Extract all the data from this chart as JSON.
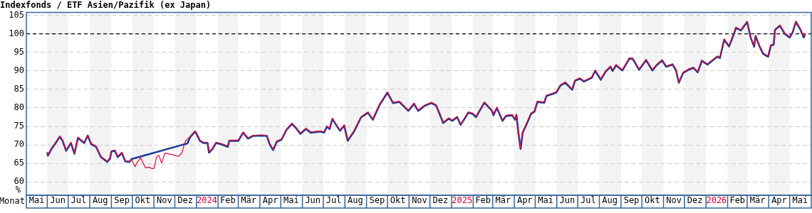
{
  "chart_data": {
    "type": "line",
    "title": "Indexfonds / ETF Asien/Pazifik (ex Japan)",
    "xlabel": "Monat",
    "ylabel": "%",
    "x": [
      "2023-06-01",
      "2023-06-02",
      "2023-06-07",
      "2023-06-13",
      "2023-06-19",
      "2023-06-23",
      "2023-06-28",
      "2023-07-05",
      "2023-07-10",
      "2023-07-15",
      "2023-07-24",
      "2023-07-29",
      "2023-08-03",
      "2023-08-10",
      "2023-08-17",
      "2023-08-26",
      "2023-08-30",
      "2023-09-01",
      "2023-09-06",
      "2023-09-10",
      "2023-09-16",
      "2023-09-21",
      "2023-09-27",
      "2023-09-30",
      "2023-10-05",
      "2023-10-08",
      "2023-10-13",
      "2023-10-16",
      "2023-10-20",
      "2023-10-25",
      "2023-10-29",
      "2023-11-01",
      "2023-11-05",
      "2023-11-08",
      "2023-11-12",
      "2023-11-17",
      "2023-11-24",
      "2023-12-01",
      "2023-12-06",
      "2023-12-11",
      "2023-12-16",
      "2023-12-23",
      "2023-12-30",
      "2024-01-01",
      "2024-01-06",
      "2024-01-11",
      "2024-01-17",
      "2024-01-19",
      "2024-01-24",
      "2024-01-29",
      "2024-02-05",
      "2024-02-15",
      "2024-02-17",
      "2024-03-01",
      "2024-03-08",
      "2024-03-15",
      "2024-03-22",
      "2024-04-03",
      "2024-04-11",
      "2024-04-15",
      "2024-04-20",
      "2024-04-25",
      "2024-05-02",
      "2024-05-09",
      "2024-05-17",
      "2024-05-24",
      "2024-05-29",
      "2024-06-06",
      "2024-06-13",
      "2024-06-27",
      "2024-07-02",
      "2024-07-06",
      "2024-07-10",
      "2024-07-14",
      "2024-07-19",
      "2024-07-25",
      "2024-07-31",
      "2024-08-05",
      "2024-08-14",
      "2024-08-24",
      "2024-09-03",
      "2024-09-10",
      "2024-09-20",
      "2024-10-01",
      "2024-10-09",
      "2024-10-18",
      "2024-10-31",
      "2024-11-08",
      "2024-11-14",
      "2024-11-24",
      "2024-12-03",
      "2024-12-10",
      "2024-12-20",
      "2024-12-28",
      "2025-01-02",
      "2025-01-09",
      "2025-01-14",
      "2025-01-25",
      "2025-01-31",
      "2025-02-05",
      "2025-02-17",
      "2025-02-28",
      "2025-03-02",
      "2025-03-07",
      "2025-03-15",
      "2025-03-20",
      "2025-03-29",
      "2025-04-02",
      "2025-04-04",
      "2025-04-07",
      "2025-04-10",
      "2025-04-13",
      "2025-04-20",
      "2025-04-25",
      "2025-04-30",
      "2025-05-04",
      "2025-05-14",
      "2025-05-17",
      "2025-05-31",
      "2025-06-06",
      "2025-06-13",
      "2025-06-23",
      "2025-06-27",
      "2025-07-04",
      "2025-07-10",
      "2025-07-21",
      "2025-07-26",
      "2025-08-03",
      "2025-08-10",
      "2025-08-17",
      "2025-08-20",
      "2025-08-25",
      "2025-09-03",
      "2025-09-08",
      "2025-09-13",
      "2025-09-18",
      "2025-09-27",
      "2025-10-07",
      "2025-10-16",
      "2025-10-23",
      "2025-10-30",
      "2025-11-05",
      "2025-11-14",
      "2025-11-19",
      "2025-11-23",
      "2025-11-29",
      "2025-12-08",
      "2025-12-14",
      "2025-12-20",
      "2025-12-26",
      "2026-01-03",
      "2026-01-17",
      "2026-01-21",
      "2026-01-27",
      "2026-02-03",
      "2026-02-07",
      "2026-02-13",
      "2026-02-20",
      "2026-03-01",
      "2026-03-06",
      "2026-03-11",
      "2026-03-13",
      "2026-03-19",
      "2026-03-24",
      "2026-03-31",
      "2026-04-04",
      "2026-04-08",
      "2026-04-10",
      "2026-04-17",
      "2026-04-24",
      "2026-05-01",
      "2026-05-05",
      "2026-05-10",
      "2026-05-17",
      "2026-05-21",
      "2026-05-23"
    ],
    "series": [
      {
        "color": "#1a3c96",
        "x": [
          "2023-06-01",
          "2023-06-02",
          "2023-06-07",
          "2023-06-13",
          "2023-06-19",
          "2023-06-23",
          "2023-06-28",
          "2023-07-05",
          "2023-07-10",
          "2023-07-15",
          "2023-07-24",
          "2023-07-29",
          "2023-08-03",
          "2023-08-10",
          "2023-08-17",
          "2023-08-26",
          "2023-08-30",
          "2023-09-01",
          "2023-09-06",
          "2023-09-10",
          "2023-09-16",
          "2023-09-21",
          "2023-09-27",
          "2023-09-30",
          "2023-12-19",
          "2023-12-23",
          "2023-12-30",
          "2024-01-01",
          "2024-01-06",
          "2024-01-11",
          "2024-01-17",
          "2024-01-19",
          "2024-01-24",
          "2024-01-29",
          "2024-02-05",
          "2024-02-15",
          "2024-02-17",
          "2024-03-01",
          "2024-03-08",
          "2024-03-15",
          "2024-03-22",
          "2024-04-03",
          "2024-04-11",
          "2024-04-15",
          "2024-04-20",
          "2024-04-25",
          "2024-05-02",
          "2024-05-09",
          "2024-05-17",
          "2024-05-24",
          "2024-05-29",
          "2024-06-06",
          "2024-06-13",
          "2024-06-27",
          "2024-07-02",
          "2024-07-06",
          "2024-07-10",
          "2024-07-14",
          "2024-07-19",
          "2024-07-25",
          "2024-07-31",
          "2024-08-05",
          "2024-08-14",
          "2024-08-24",
          "2024-09-03",
          "2024-09-10",
          "2024-09-20",
          "2024-10-01",
          "2024-10-09",
          "2024-10-18",
          "2024-10-31",
          "2024-11-08",
          "2024-11-14",
          "2024-11-24",
          "2024-12-03",
          "2024-12-10",
          "2024-12-20",
          "2024-12-28",
          "2025-01-02",
          "2025-01-09",
          "2025-01-14",
          "2025-01-25",
          "2025-01-31",
          "2025-02-05",
          "2025-02-17",
          "2025-02-28",
          "2025-03-02",
          "2025-03-07",
          "2025-03-15",
          "2025-03-20",
          "2025-03-29",
          "2025-04-02",
          "2025-04-04",
          "2025-04-07",
          "2025-04-10",
          "2025-04-13",
          "2025-04-20",
          "2025-04-25",
          "2025-04-30",
          "2025-05-04",
          "2025-05-14",
          "2025-05-17",
          "2025-05-31",
          "2025-06-06",
          "2025-06-13",
          "2025-06-23",
          "2025-06-27",
          "2025-07-04",
          "2025-07-10",
          "2025-07-21",
          "2025-07-26",
          "2025-08-03",
          "2025-08-10",
          "2025-08-17",
          "2025-08-20",
          "2025-08-25",
          "2025-09-03",
          "2025-09-08",
          "2025-09-13",
          "2025-09-18",
          "2025-09-27",
          "2025-10-07",
          "2025-10-16",
          "2025-10-23",
          "2025-10-30",
          "2025-11-05",
          "2025-11-14",
          "2025-11-19",
          "2025-11-23",
          "2025-11-29",
          "2025-12-08",
          "2025-12-14",
          "2025-12-20",
          "2025-12-26",
          "2026-01-03",
          "2026-01-17",
          "2026-01-21",
          "2026-01-27",
          "2026-02-03",
          "2026-02-07",
          "2026-02-13",
          "2026-02-20",
          "2026-03-01",
          "2026-03-06",
          "2026-03-11",
          "2026-03-13",
          "2026-03-19",
          "2026-03-24",
          "2026-03-31",
          "2026-04-04",
          "2026-04-08",
          "2026-04-10",
          "2026-04-17",
          "2026-04-24",
          "2026-05-01",
          "2026-05-05",
          "2026-05-10",
          "2026-05-17",
          "2026-05-21",
          "2026-05-23"
        ],
        "values": [
          67.9,
          67.1,
          68.9,
          70.5,
          72.2,
          71.1,
          68.4,
          70.5,
          67.6,
          71.9,
          70.5,
          72.5,
          70.2,
          69.5,
          66.7,
          65.4,
          66.3,
          68.2,
          68.4,
          66.7,
          67.8,
          65.5,
          65.4,
          66.2,
          70.4,
          72.1,
          73.6,
          73.0,
          71.1,
          70.5,
          70.5,
          67.9,
          68.9,
          70.5,
          70.2,
          69.5,
          71.1,
          71.1,
          73.3,
          71.7,
          72.4,
          72.5,
          72.4,
          70.2,
          68.6,
          70.8,
          71.4,
          74.0,
          75.7,
          74.3,
          73.0,
          74.3,
          73.3,
          73.6,
          73.3,
          74.9,
          74.3,
          77.0,
          75.5,
          73.8,
          75.2,
          71.1,
          73.6,
          77.4,
          78.7,
          76.8,
          80.9,
          84.1,
          81.3,
          81.6,
          79.2,
          81.1,
          79.2,
          80.6,
          81.3,
          80.6,
          75.9,
          77.1,
          76.5,
          77.5,
          75.4,
          78.7,
          78.4,
          77.5,
          81.4,
          79.2,
          78.0,
          80.0,
          76.5,
          77.8,
          78.0,
          76.8,
          78.1,
          73.0,
          68.9,
          73.3,
          76.2,
          78.4,
          79.0,
          81.6,
          81.4,
          83.2,
          84.1,
          86.0,
          86.8,
          84.9,
          87.3,
          87.9,
          87.1,
          88.1,
          90.0,
          87.6,
          89.8,
          91.1,
          90.0,
          91.5,
          90.1,
          91.7,
          93.3,
          93.2,
          90.3,
          92.9,
          90.1,
          91.7,
          92.8,
          91.1,
          91.7,
          90.1,
          86.8,
          89.4,
          90.4,
          90.8,
          89.6,
          92.7,
          91.7,
          93.8,
          93.5,
          98.4,
          96.6,
          98.5,
          101.6,
          100.9,
          103.2,
          99.0,
          96.5,
          99.4,
          96.5,
          94.6,
          93.8,
          96.8,
          97.1,
          101.1,
          102.2,
          100.0,
          99.0,
          100.3,
          103.2,
          100.9,
          99.0,
          99.8
        ]
      },
      {
        "color": "#dc0a3c",
        "values": [
          68.1,
          67.3,
          69.1,
          70.7,
          72.4,
          71.3,
          68.6,
          70.7,
          67.8,
          72.1,
          70.7,
          72.7,
          70.4,
          69.7,
          66.9,
          65.6,
          66.5,
          68.4,
          68.6,
          66.9,
          68.0,
          65.7,
          65.6,
          66.0,
          64.1,
          65.3,
          66.5,
          65.3,
          63.8,
          64.0,
          63.6,
          63.6,
          66.9,
          67.2,
          65.1,
          67.8,
          67.5,
          67.2,
          66.9,
          67.8,
          71.0,
          72.3,
          73.8,
          73.2,
          71.3,
          70.7,
          70.7,
          68.1,
          69.1,
          70.7,
          70.4,
          69.7,
          71.3,
          71.3,
          73.5,
          71.9,
          72.6,
          72.7,
          72.6,
          70.4,
          68.8,
          71.0,
          71.6,
          74.2,
          75.9,
          74.5,
          73.2,
          74.5,
          73.5,
          73.8,
          73.5,
          75.1,
          74.5,
          77.2,
          75.7,
          74.0,
          75.4,
          71.3,
          73.8,
          77.6,
          78.9,
          77.0,
          81.1,
          84.3,
          81.5,
          81.8,
          79.4,
          81.3,
          79.4,
          80.8,
          81.5,
          80.8,
          76.1,
          77.3,
          76.7,
          77.7,
          75.6,
          78.9,
          78.6,
          77.7,
          81.6,
          79.4,
          78.2,
          80.2,
          76.7,
          78.0,
          78.2,
          77.0,
          78.3,
          73.2,
          69.1,
          73.5,
          76.4,
          78.6,
          79.2,
          81.8,
          81.6,
          83.4,
          84.3,
          86.2,
          87.0,
          85.1,
          87.5,
          88.1,
          87.3,
          88.3,
          90.2,
          87.8,
          90.0,
          91.3,
          90.2,
          91.7,
          90.3,
          91.9,
          93.5,
          93.4,
          90.5,
          93.1,
          90.3,
          91.9,
          93.0,
          91.3,
          91.9,
          90.3,
          87.0,
          89.6,
          90.6,
          91.0,
          89.8,
          92.9,
          91.9,
          94.0,
          93.7,
          98.6,
          96.8,
          98.7,
          101.8,
          101.1,
          103.4,
          99.2,
          96.7,
          99.6,
          96.7,
          94.8,
          94.0,
          97.0,
          97.3,
          101.3,
          102.4,
          100.2,
          99.2,
          100.5,
          103.4,
          101.1,
          99.2,
          100.0
        ]
      }
    ],
    "xlim": [
      "2023-05-02",
      "2026-06-01"
    ],
    "xticks": [
      {
        "value": "2023-05-17",
        "label": "Mai"
      },
      {
        "value": "2023-06-16",
        "label": "Jun"
      },
      {
        "value": "2023-07-16",
        "label": "Jul"
      },
      {
        "value": "2023-08-16",
        "label": "Aug"
      },
      {
        "value": "2023-09-16",
        "label": "Sep"
      },
      {
        "value": "2023-10-16",
        "label": "Okt"
      },
      {
        "value": "2023-11-16",
        "label": "Nov"
      },
      {
        "value": "2023-12-16",
        "label": "Dez"
      },
      {
        "value": "2024-01-16",
        "label": "2024"
      },
      {
        "value": "2024-02-15",
        "label": "Feb"
      },
      {
        "value": "2024-03-16",
        "label": "Mär"
      },
      {
        "value": "2024-04-16",
        "label": "Apr"
      },
      {
        "value": "2024-05-16",
        "label": "Mai"
      },
      {
        "value": "2024-06-16",
        "label": "Jun"
      },
      {
        "value": "2024-07-16",
        "label": "Jul"
      },
      {
        "value": "2024-08-16",
        "label": "Aug"
      },
      {
        "value": "2024-09-16",
        "label": "Sep"
      },
      {
        "value": "2024-10-16",
        "label": "Okt"
      },
      {
        "value": "2024-11-16",
        "label": "Nov"
      },
      {
        "value": "2024-12-16",
        "label": "Dez"
      },
      {
        "value": "2025-01-16",
        "label": "2025"
      },
      {
        "value": "2025-02-15",
        "label": "Feb"
      },
      {
        "value": "2025-03-16",
        "label": "Mär"
      },
      {
        "value": "2025-04-16",
        "label": "Apr"
      },
      {
        "value": "2025-05-16",
        "label": "Mai"
      },
      {
        "value": "2025-06-16",
        "label": "Jun"
      },
      {
        "value": "2025-07-16",
        "label": "Jul"
      },
      {
        "value": "2025-08-16",
        "label": "Aug"
      },
      {
        "value": "2025-09-16",
        "label": "Sep"
      },
      {
        "value": "2025-10-16",
        "label": "Okt"
      },
      {
        "value": "2025-11-16",
        "label": "Nov"
      },
      {
        "value": "2025-12-16",
        "label": "Dez"
      },
      {
        "value": "2026-01-16",
        "label": "2026"
      },
      {
        "value": "2026-02-15",
        "label": "Feb"
      },
      {
        "value": "2026-03-16",
        "label": "Mär"
      },
      {
        "value": "2026-04-16",
        "label": "Apr"
      },
      {
        "value": "2026-05-16",
        "label": "Mai"
      }
    ],
    "ylim": [
      56.4,
      105.8
    ],
    "yticks": [
      60,
      65,
      70,
      75,
      80,
      85,
      90,
      95,
      100,
      105
    ],
    "grid": "y",
    "legend": false,
    "line_style": "solid",
    "ref_lines": [
      {
        "axis": "y",
        "value": 100,
        "color": "#000000",
        "line_style": "dashed"
      }
    ],
    "bands": [
      {
        "axis": "x",
        "from": "2023-06-01",
        "to": "2023-07-01",
        "color": "#f3f3f3"
      },
      {
        "axis": "x",
        "from": "2023-08-01",
        "to": "2023-09-01",
        "color": "#f3f3f3"
      },
      {
        "axis": "x",
        "from": "2023-10-01",
        "to": "2023-11-01",
        "color": "#f3f3f3"
      },
      {
        "axis": "x",
        "from": "2023-12-01",
        "to": "2024-01-01",
        "color": "#f3f3f3"
      },
      {
        "axis": "x",
        "from": "2024-02-01",
        "to": "2024-03-01",
        "color": "#f3f3f3"
      },
      {
        "axis": "x",
        "from": "2024-04-01",
        "to": "2024-05-01",
        "color": "#f3f3f3"
      },
      {
        "axis": "x",
        "from": "2024-06-01",
        "to": "2024-07-01",
        "color": "#f3f3f3"
      },
      {
        "axis": "x",
        "from": "2024-08-01",
        "to": "2024-09-01",
        "color": "#f3f3f3"
      },
      {
        "axis": "x",
        "from": "2024-10-01",
        "to": "2024-11-01",
        "color": "#f3f3f3"
      },
      {
        "axis": "x",
        "from": "2024-12-01",
        "to": "2025-01-01",
        "color": "#f3f3f3"
      },
      {
        "axis": "x",
        "from": "2025-02-01",
        "to": "2025-03-01",
        "color": "#f3f3f3"
      },
      {
        "axis": "x",
        "from": "2025-04-01",
        "to": "2025-05-01",
        "color": "#f3f3f3"
      },
      {
        "axis": "x",
        "from": "2025-06-01",
        "to": "2025-07-01",
        "color": "#f3f3f3"
      },
      {
        "axis": "x",
        "from": "2025-08-01",
        "to": "2025-09-01",
        "color": "#f3f3f3"
      },
      {
        "axis": "x",
        "from": "2025-10-01",
        "to": "2025-11-01",
        "color": "#f3f3f3"
      },
      {
        "axis": "x",
        "from": "2025-12-01",
        "to": "2026-01-01",
        "color": "#f3f3f3"
      },
      {
        "axis": "x",
        "from": "2026-02-01",
        "to": "2026-03-01",
        "color": "#f3f3f3"
      },
      {
        "axis": "x",
        "from": "2026-04-01",
        "to": "2026-05-01",
        "color": "#f3f3f3"
      }
    ]
  }
}
